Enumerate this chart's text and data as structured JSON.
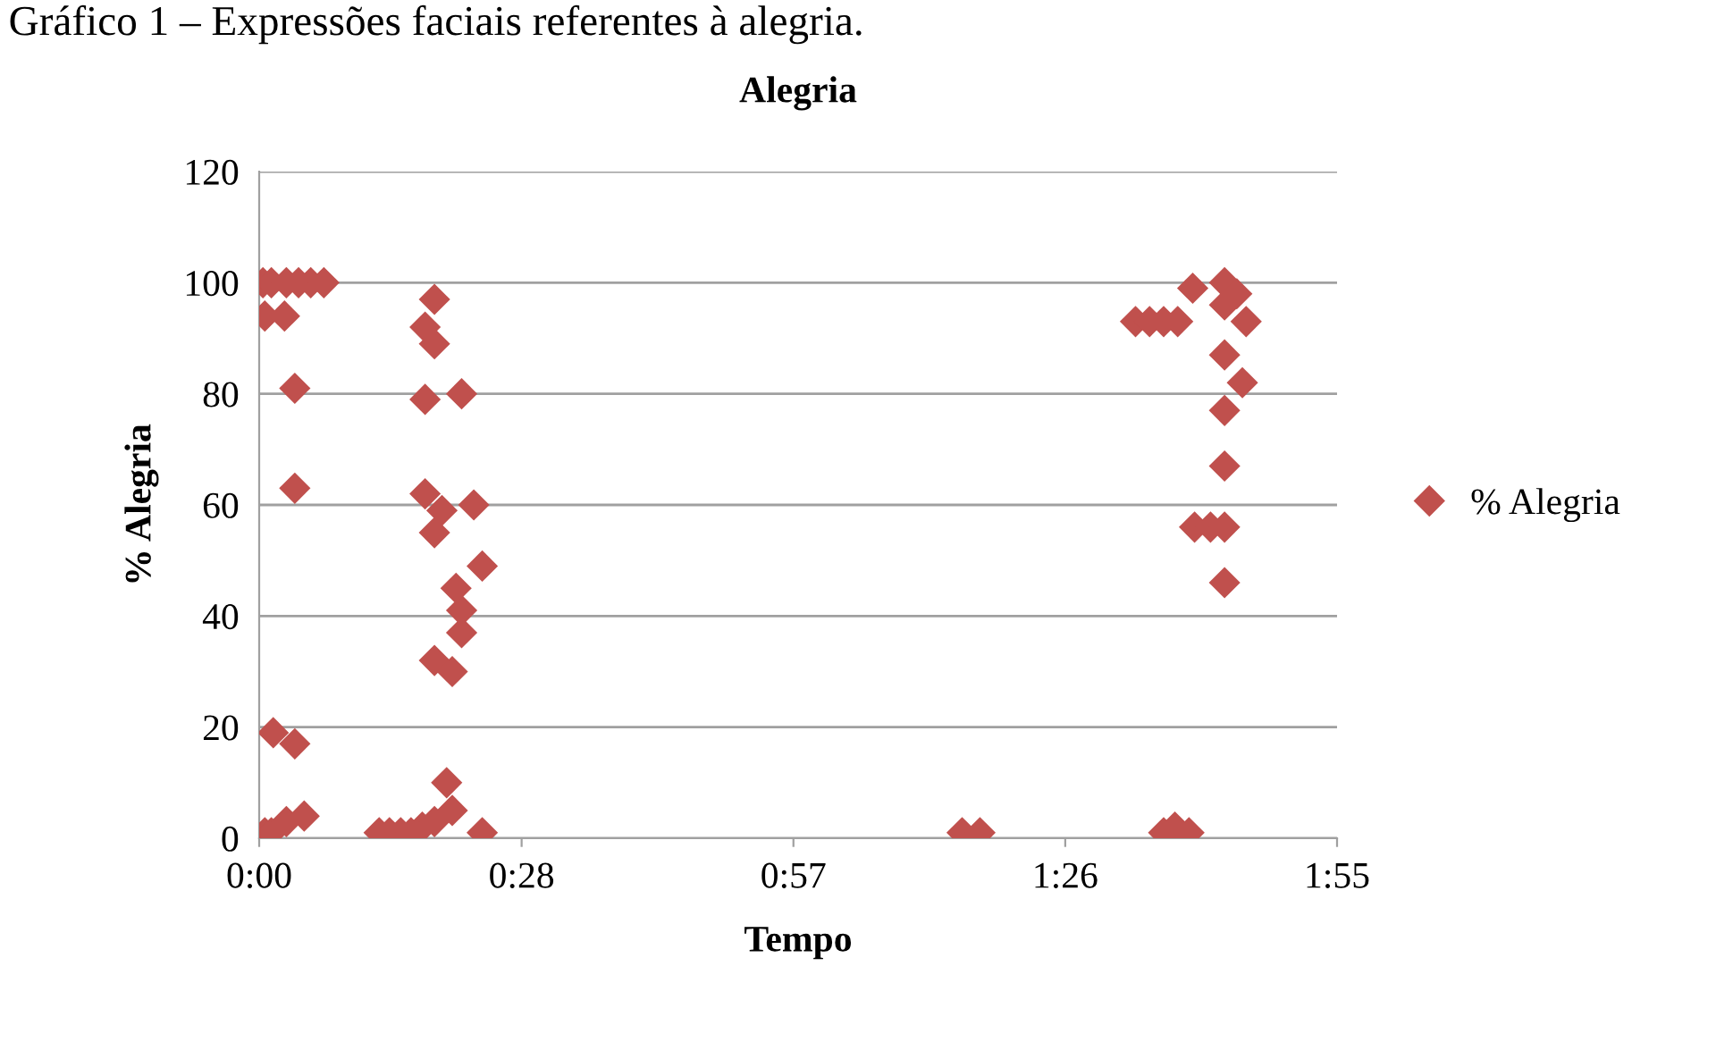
{
  "chart_data": {
    "type": "scatter",
    "title": "Alegria",
    "xlabel": "Tempo",
    "ylabel": "% Alegria",
    "annotations": [
      "Gráfico 1 – Expressões faciais referentes à alegria."
    ],
    "xlim": [
      0,
      115
    ],
    "xticks": [
      {
        "value": 0,
        "label": "0:00"
      },
      {
        "value": 28,
        "label": "0:28"
      },
      {
        "value": 57,
        "label": "0:57"
      },
      {
        "value": 86,
        "label": "1:26"
      },
      {
        "value": 115,
        "label": "1:55"
      }
    ],
    "ylim": [
      0,
      120
    ],
    "yticks": [
      0,
      20,
      40,
      60,
      80,
      100,
      120
    ],
    "grid": "y",
    "legend": "right",
    "marker": "diamond",
    "series": [
      {
        "name": "% Alegria",
        "color": "#c0504d",
        "x": [
          0.4,
          1.3,
          2.9,
          4.2,
          5.5,
          6.9,
          0.6,
          2.7,
          3.8,
          3.8,
          1.5,
          3.8,
          0.6,
          1.3,
          2.9,
          4.8,
          12.8,
          13.9,
          15.1,
          16.2,
          17.4,
          18.7,
          17.7,
          18.7,
          17.7,
          21.6,
          17.7,
          19.5,
          22.9,
          18.7,
          23.8,
          21.0,
          21.6,
          21.6,
          18.7,
          20.6,
          20.0,
          20.6,
          18.7,
          23.8,
          75.0,
          76.9,
          96.5,
          97.7,
          99.2,
          93.5,
          95.0,
          96.5,
          98.0,
          99.6,
          103.0,
          104.3,
          103.0,
          105.3,
          103.0,
          104.9,
          103.0,
          103.0,
          99.8,
          101.5,
          103.0,
          103.0
        ],
        "values": [
          100,
          100,
          100,
          100,
          100,
          100,
          94,
          94,
          81,
          63,
          19,
          17,
          1,
          1,
          3,
          4,
          1,
          1,
          1,
          1,
          2,
          97,
          92,
          89,
          79,
          80,
          62,
          59,
          60,
          55,
          49,
          45,
          41,
          37,
          32,
          30,
          10,
          5,
          3,
          1,
          1,
          1,
          1,
          2,
          1,
          93,
          93,
          93,
          93,
          99,
          100,
          98,
          96,
          93,
          87,
          82,
          77,
          67,
          56,
          56,
          56,
          46
        ]
      }
    ]
  }
}
